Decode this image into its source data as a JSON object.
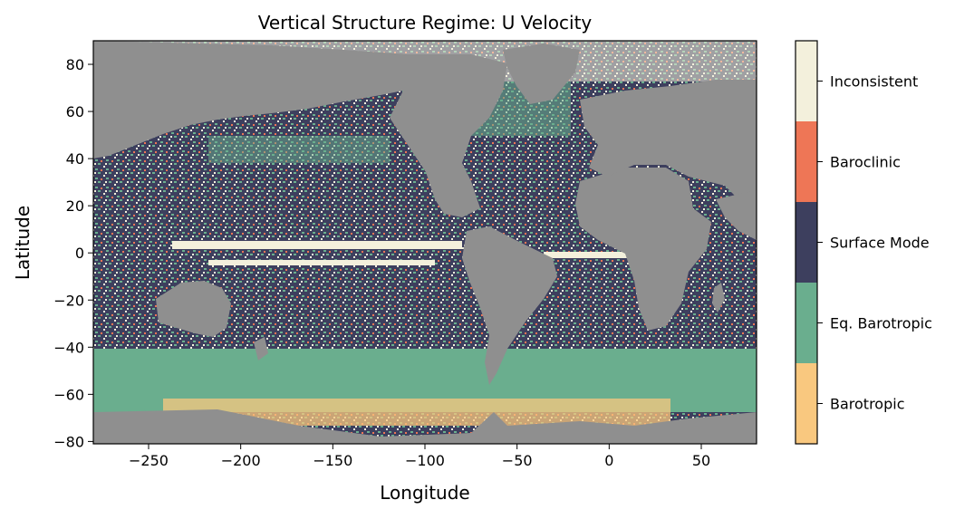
{
  "chart_data": {
    "type": "heatmap",
    "title": "Vertical Structure Regime: U Velocity",
    "xlabel": "Longitude",
    "ylabel": "Latitude",
    "xlim": [
      -280,
      80
    ],
    "ylim": [
      -81,
      90
    ],
    "x_ticks": [
      -250,
      -200,
      -150,
      -100,
      -50,
      0,
      50
    ],
    "x_tick_labels": [
      "−250",
      "−200",
      "−150",
      "−100",
      "−50",
      "0",
      "50"
    ],
    "y_ticks": [
      -80,
      -60,
      -40,
      -20,
      0,
      20,
      40,
      60,
      80
    ],
    "y_tick_labels": [
      "−80",
      "−60",
      "−40",
      "−20",
      "0",
      "20",
      "40",
      "60",
      "80"
    ],
    "land_color": "#8f8f8f",
    "colorbar": {
      "categories": [
        {
          "label": "Barotropic",
          "color": "#f9c87f"
        },
        {
          "label": "Eq. Barotropic",
          "color": "#6aae8e"
        },
        {
          "label": "Surface Mode",
          "color": "#3d3f5e"
        },
        {
          "label": "Baroclinic",
          "color": "#ee7656"
        },
        {
          "label": "Inconsistent",
          "color": "#f3f0dc"
        }
      ]
    }
  }
}
